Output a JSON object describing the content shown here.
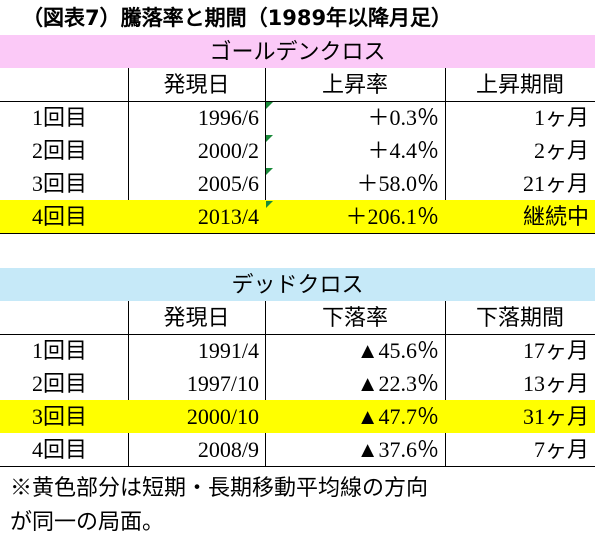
{
  "title": "（図表7）騰落率と期間（1989年以降月足）",
  "tables": [
    {
      "caption": "ゴールデンクロス",
      "caption_color": "#fbc9f7",
      "columns": [
        "発現日",
        "上昇率",
        "上昇期間"
      ],
      "rows": [
        {
          "cells": [
            "1回目",
            "1996/6",
            "＋0.3％",
            "1ヶ月"
          ],
          "highlight": false
        },
        {
          "cells": [
            "2回目",
            "2000/2",
            "＋4.4％",
            "2ヶ月"
          ],
          "highlight": false
        },
        {
          "cells": [
            "3回目",
            "2005/6",
            "＋58.0％",
            "21ヶ月"
          ],
          "highlight": false
        },
        {
          "cells": [
            "4回目",
            "2013/4",
            "＋206.1％",
            "継続中"
          ],
          "highlight": true
        }
      ]
    },
    {
      "caption": "デッドクロス",
      "caption_color": "#c6e9f8",
      "columns": [
        "発現日",
        "下落率",
        "下落期間"
      ],
      "rows": [
        {
          "cells": [
            "1回目",
            "1991/4",
            "▲45.6％",
            "17ヶ月"
          ],
          "highlight": false
        },
        {
          "cells": [
            "2回目",
            "1997/10",
            "▲22.3％",
            "13ヶ月"
          ],
          "highlight": false
        },
        {
          "cells": [
            "3回目",
            "2000/10",
            "▲47.7％",
            "31ヶ月"
          ],
          "highlight": true
        },
        {
          "cells": [
            "4回目",
            "2008/9",
            "▲37.6％",
            "7ヶ月"
          ],
          "highlight": false
        }
      ]
    }
  ],
  "highlight_color": "#ffff00",
  "note": [
    "※黄色部分は短期・長期移動平均線の方向",
    "が同一の局面。"
  ]
}
